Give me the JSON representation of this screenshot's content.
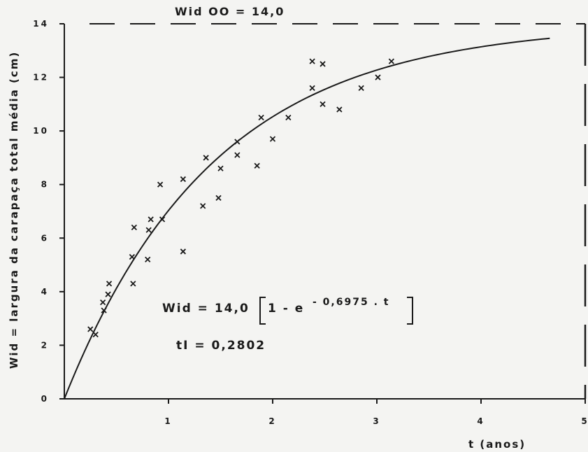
{
  "chart_data": {
    "type": "scatter",
    "title": "",
    "xlabel": "t (anos)",
    "ylabel": "Wid = largura da carapaça total média (cm)",
    "xlim": [
      0,
      5
    ],
    "ylim": [
      0,
      14
    ],
    "x_ticks": [
      1,
      2,
      3,
      4,
      5
    ],
    "x_tick_labels": [
      "1",
      "2",
      "3",
      "4",
      "5"
    ],
    "y_ticks": [
      0,
      2,
      4,
      6,
      8,
      10,
      12,
      14
    ],
    "y_tick_labels": [
      "0",
      "2",
      "4",
      "6",
      "8",
      "10",
      "12",
      "14"
    ],
    "grid": false,
    "marker": "x",
    "series": [
      {
        "type": "scatter",
        "points": [
          [
            0.25,
            2.6
          ],
          [
            0.3,
            2.4
          ],
          [
            0.37,
            3.6
          ],
          [
            0.38,
            3.3
          ],
          [
            0.42,
            3.9
          ],
          [
            0.43,
            4.3
          ],
          [
            0.65,
            5.3
          ],
          [
            0.66,
            4.3
          ],
          [
            0.67,
            6.4
          ],
          [
            0.8,
            5.2
          ],
          [
            0.81,
            6.3
          ],
          [
            0.83,
            6.7
          ],
          [
            0.92,
            8.0
          ],
          [
            0.94,
            6.7
          ],
          [
            1.14,
            5.5
          ],
          [
            1.14,
            8.2
          ],
          [
            1.33,
            7.2
          ],
          [
            1.36,
            9.0
          ],
          [
            1.48,
            7.5
          ],
          [
            1.5,
            8.6
          ],
          [
            1.66,
            9.6
          ],
          [
            1.66,
            9.1
          ],
          [
            1.85,
            8.7
          ],
          [
            1.89,
            10.5
          ],
          [
            2.0,
            9.7
          ],
          [
            2.15,
            10.5
          ],
          [
            2.38,
            12.6
          ],
          [
            2.38,
            11.6
          ],
          [
            2.48,
            12.5
          ],
          [
            2.48,
            11.0
          ],
          [
            2.64,
            10.8
          ],
          [
            2.85,
            11.6
          ],
          [
            3.01,
            12.0
          ],
          [
            3.14,
            12.6
          ]
        ]
      },
      {
        "type": "line",
        "model": "von Bertalanffy",
        "Winf": 14.0,
        "k": 0.6975,
        "t0": 0,
        "t_range": [
          0,
          4.66
        ]
      },
      {
        "type": "asymptote",
        "y": 14.0,
        "style": "dashed"
      }
    ],
    "annotations": {
      "asymptote_label": "Wid OO = 14,0",
      "equation_lhs": "Wid = 14,0",
      "equation_one": "1 - e",
      "equation_exponent": "- 0,6975 . t",
      "ti_label": "tI = 0,2802"
    }
  }
}
